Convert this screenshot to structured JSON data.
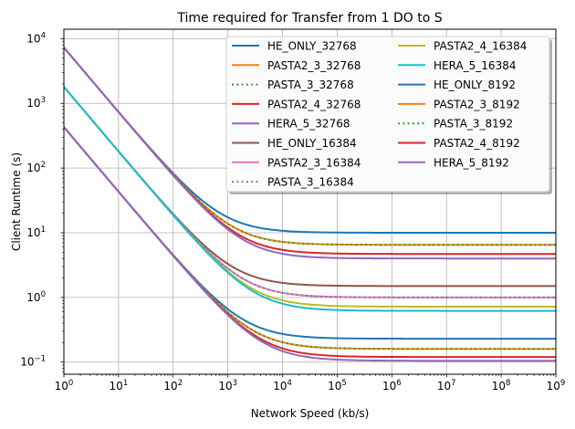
{
  "chart_data": {
    "type": "line",
    "title": "Time required for Transfer from 1 DO to S",
    "xlabel": "Network Speed (kb/s)",
    "ylabel": "Client Runtime (s)",
    "x_scale": "log",
    "y_scale": "log",
    "xlim": [
      1,
      1000000000
    ],
    "ylim": [
      0.065,
      14000
    ],
    "x_ticks": [
      {
        "value": 1,
        "base": "10",
        "exp": "0"
      },
      {
        "value": 10,
        "base": "10",
        "exp": "1"
      },
      {
        "value": 100,
        "base": "10",
        "exp": "2"
      },
      {
        "value": 1000,
        "base": "10",
        "exp": "3"
      },
      {
        "value": 10000,
        "base": "10",
        "exp": "4"
      },
      {
        "value": 100000,
        "base": "10",
        "exp": "5"
      },
      {
        "value": 1000000,
        "base": "10",
        "exp": "6"
      },
      {
        "value": 10000000,
        "base": "10",
        "exp": "7"
      },
      {
        "value": 100000000,
        "base": "10",
        "exp": "8"
      },
      {
        "value": 1000000000,
        "base": "10",
        "exp": "9"
      }
    ],
    "y_ticks": [
      {
        "value": 0.1,
        "base": "10",
        "exp": "−1"
      },
      {
        "value": 1,
        "base": "10",
        "exp": "0"
      },
      {
        "value": 10,
        "base": "10",
        "exp": "1"
      },
      {
        "value": 100,
        "base": "10",
        "exp": "2"
      },
      {
        "value": 1000,
        "base": "10",
        "exp": "3"
      },
      {
        "value": 10000,
        "base": "10",
        "exp": "4"
      }
    ],
    "grid": true,
    "legend_position": "top-right",
    "legend_columns": 2,
    "series": [
      {
        "name": "HE_ONLY_32768",
        "color": "#1f77b4",
        "dash": "solid",
        "y_at_1": 7300,
        "plateau": 10.0
      },
      {
        "name": "PASTA2_3_32768",
        "color": "#ff7f0e",
        "dash": "solid",
        "y_at_1": 7300,
        "plateau": 6.5
      },
      {
        "name": "PASTA_3_32768",
        "color": "#2ca02c",
        "dash": "dotted",
        "y_at_1": 7300,
        "plateau": 6.5
      },
      {
        "name": "PASTA2_4_32768",
        "color": "#d62728",
        "dash": "solid",
        "y_at_1": 7300,
        "plateau": 4.7
      },
      {
        "name": "HERA_5_32768",
        "color": "#9467bd",
        "dash": "solid",
        "y_at_1": 7300,
        "plateau": 4.0
      },
      {
        "name": "HE_ONLY_16384",
        "color": "#8c564b",
        "dash": "solid",
        "y_at_1": 1800,
        "plateau": 1.5
      },
      {
        "name": "PASTA2_3_16384",
        "color": "#e377c2",
        "dash": "solid",
        "y_at_1": 1800,
        "plateau": 1.0
      },
      {
        "name": "PASTA_3_16384",
        "color": "#7f7f7f",
        "dash": "dotted",
        "y_at_1": 1800,
        "plateau": 1.0
      },
      {
        "name": "PASTA2_4_16384",
        "color": "#bcbd22",
        "dash": "solid",
        "y_at_1": 1800,
        "plateau": 0.72
      },
      {
        "name": "HERA_5_16384",
        "color": "#17becf",
        "dash": "solid",
        "y_at_1": 1800,
        "plateau": 0.62
      },
      {
        "name": "HE_ONLY_8192",
        "color": "#1f77b4",
        "dash": "solid",
        "y_at_1": 430,
        "plateau": 0.23
      },
      {
        "name": "PASTA2_3_8192",
        "color": "#ff7f0e",
        "dash": "solid",
        "y_at_1": 430,
        "plateau": 0.16
      },
      {
        "name": "PASTA_3_8192",
        "color": "#2ca02c",
        "dash": "dotted",
        "y_at_1": 430,
        "plateau": 0.16
      },
      {
        "name": "PASTA2_4_8192",
        "color": "#d62728",
        "dash": "solid",
        "y_at_1": 430,
        "plateau": 0.12
      },
      {
        "name": "HERA_5_8192",
        "color": "#9467bd",
        "dash": "solid",
        "y_at_1": 430,
        "plateau": 0.105
      }
    ]
  }
}
